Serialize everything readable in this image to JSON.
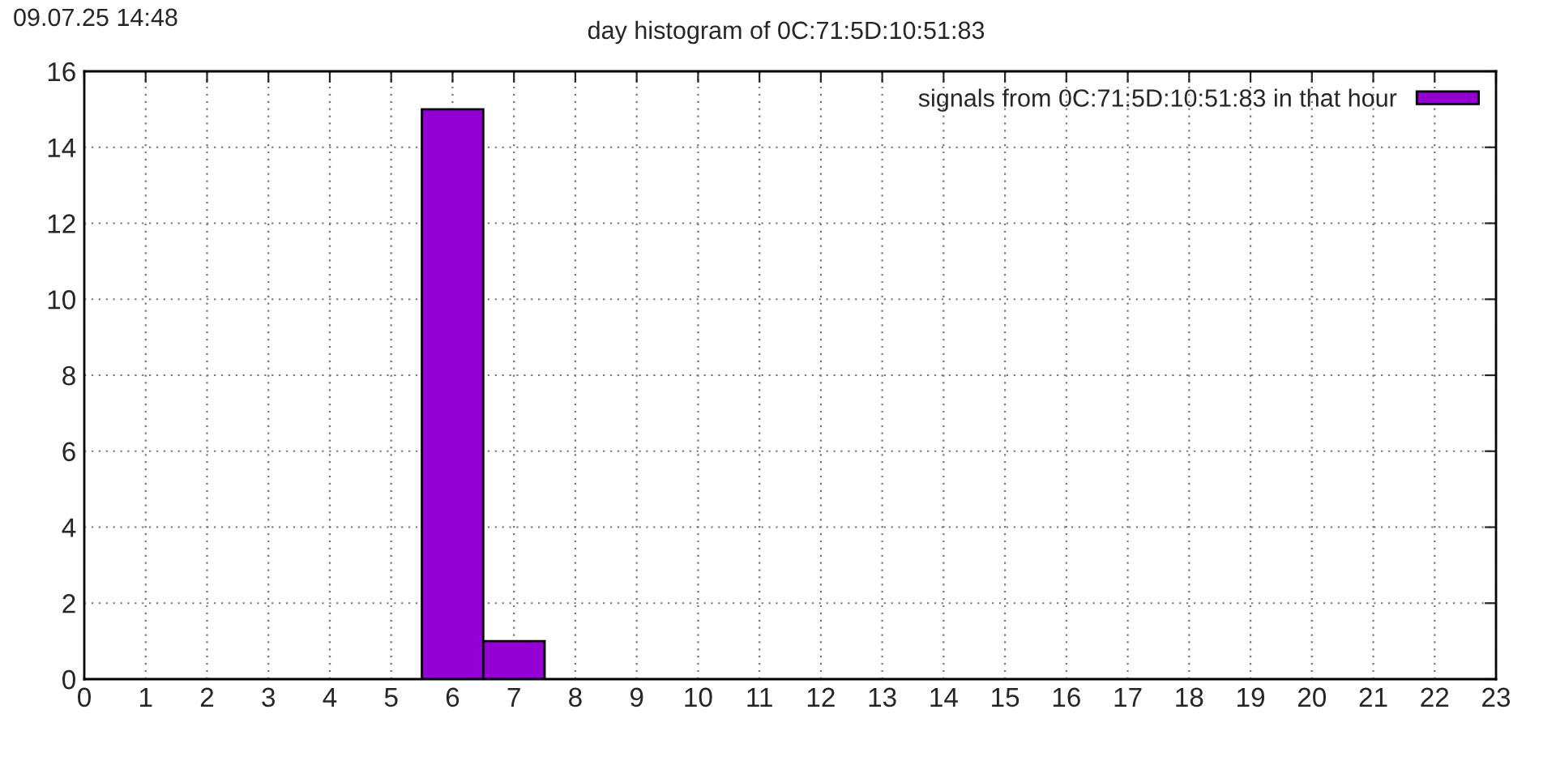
{
  "chart_data": {
    "type": "histogram",
    "title": "day histogram of 0C:71:5D:10:51:83",
    "annotations": [
      "09.07.25 14:48"
    ],
    "bins": [
      5.5,
      6.5,
      7.5
    ],
    "series": [
      {
        "name": "signals from 0C:71:5D:10:51:83 in that hour",
        "color": "#9400d3",
        "values": [
          15,
          1
        ]
      }
    ],
    "xlim": [
      0,
      23
    ],
    "xticks": [
      0,
      1,
      2,
      3,
      4,
      5,
      6,
      7,
      8,
      9,
      10,
      11,
      12,
      13,
      14,
      15,
      16,
      17,
      18,
      19,
      20,
      21,
      22,
      23
    ],
    "ylim": [
      0,
      16
    ],
    "yticks": [
      0,
      2,
      4,
      6,
      8,
      10,
      12,
      14,
      16
    ],
    "grid": true,
    "legend": "top right"
  }
}
